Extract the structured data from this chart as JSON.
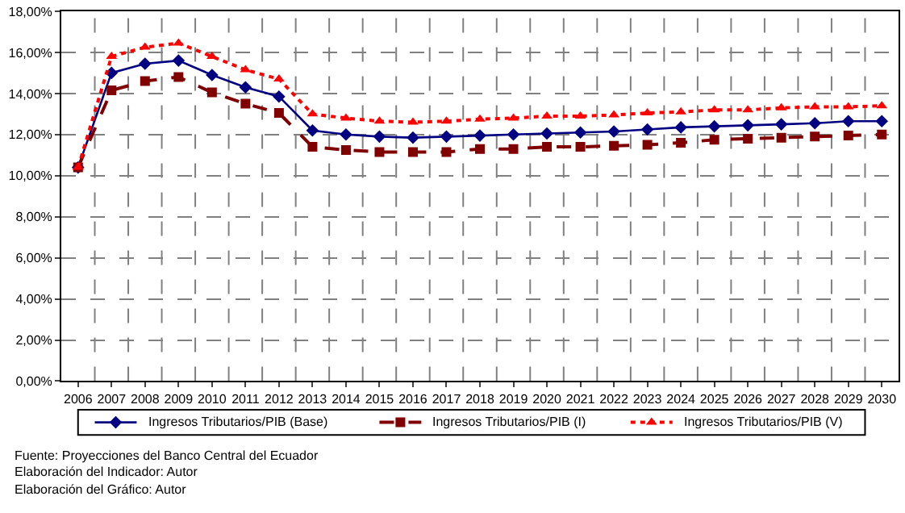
{
  "chart_data": {
    "type": "line",
    "categories": [
      "2006",
      "2007",
      "2008",
      "2009",
      "2010",
      "2011",
      "2012",
      "2013",
      "2014",
      "2015",
      "2016",
      "2017",
      "2018",
      "2019",
      "2020",
      "2021",
      "2022",
      "2023",
      "2024",
      "2025",
      "2026",
      "2027",
      "2028",
      "2029",
      "2030"
    ],
    "series": [
      {
        "name": "Ingresos Tributarios/PIB (Base)",
        "color": "#000080",
        "marker": "diamond",
        "line_style": "solid",
        "values": [
          10.4,
          15.0,
          15.45,
          15.6,
          14.9,
          14.3,
          13.85,
          12.2,
          12.0,
          11.9,
          11.85,
          11.9,
          11.95,
          12.0,
          12.05,
          12.1,
          12.15,
          12.25,
          12.35,
          12.4,
          12.45,
          12.5,
          12.55,
          12.65,
          12.65
        ]
      },
      {
        "name": "Ingresos Tributarios/PIB (I)",
        "color": "#800000",
        "marker": "square",
        "line_style": "dashed",
        "values": [
          10.4,
          14.15,
          14.6,
          14.8,
          14.05,
          13.5,
          13.05,
          11.4,
          11.25,
          11.15,
          11.15,
          11.15,
          11.3,
          11.3,
          11.4,
          11.4,
          11.45,
          11.5,
          11.6,
          11.75,
          11.8,
          11.85,
          11.9,
          11.95,
          12.0
        ]
      },
      {
        "name": "Ingresos Tributarios/PIB (V)",
        "color": "#ff0000",
        "marker": "triangle",
        "line_style": "dotted",
        "values": [
          10.4,
          15.8,
          16.25,
          16.45,
          15.8,
          15.15,
          14.7,
          13.0,
          12.8,
          12.65,
          12.6,
          12.65,
          12.75,
          12.8,
          12.9,
          12.9,
          12.95,
          13.05,
          13.1,
          13.2,
          13.2,
          13.3,
          13.35,
          13.35,
          13.4
        ]
      }
    ],
    "ylim": [
      0,
      18
    ],
    "yticks": [
      {
        "value": 0,
        "label": "0,00%"
      },
      {
        "value": 2,
        "label": "2,00%"
      },
      {
        "value": 4,
        "label": "4,00%"
      },
      {
        "value": 6,
        "label": "6,00%"
      },
      {
        "value": 8,
        "label": "8,00%"
      },
      {
        "value": 10,
        "label": "10,00%"
      },
      {
        "value": 12,
        "label": "12,00%"
      },
      {
        "value": 14,
        "label": "14,00%"
      },
      {
        "value": 16,
        "label": "16,00%"
      },
      {
        "value": 18,
        "label": "18,00%"
      }
    ],
    "grid": true,
    "legend": "bottom",
    "annotations": [
      "Fuente: Proyecciones del Banco Central del Ecuador",
      "Elaboración del Indicador: Autor",
      "Elaboración del Gráfico: Autor"
    ]
  }
}
